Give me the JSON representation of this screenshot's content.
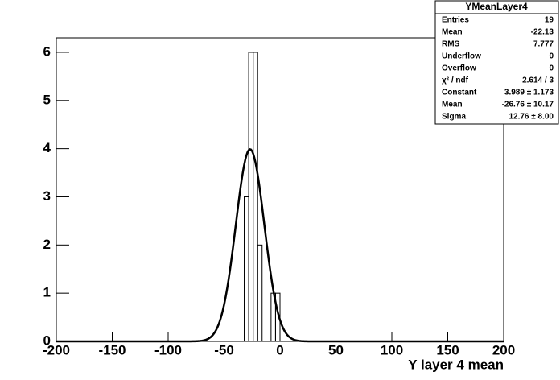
{
  "chart_data": {
    "type": "histogram",
    "xlabel": "Y layer 4 mean",
    "bins": [
      -32,
      -28,
      -24,
      -20,
      -16,
      -12,
      -8,
      -4,
      0
    ],
    "counts": [
      3,
      6,
      6,
      2,
      0,
      0,
      1,
      1
    ],
    "color": "#000000",
    "xlim": [
      -200,
      200
    ],
    "xticks": [
      -200,
      -150,
      -100,
      -50,
      0,
      50,
      100,
      150,
      200
    ],
    "ylim": [
      0,
      6.3
    ],
    "yticks": [
      0,
      1,
      2,
      3,
      4,
      5,
      6
    ],
    "fit": {
      "names": [
        "Constant",
        "Mean",
        "Sigma"
      ],
      "values": [
        3.989,
        -26.76,
        12.76
      ],
      "value_labels": [
        "3.989 ± 1.173",
        "-26.76 ± 10.17",
        "12.76 ± 8.00"
      ],
      "color": "#000000"
    },
    "stats": {
      "title": "YMeanLayer4",
      "rows": [
        {
          "label": "Entries",
          "value": 19
        },
        {
          "label": "Mean",
          "value": -22.13
        },
        {
          "label": "RMS",
          "value": 7.777
        },
        {
          "label": "Underflow",
          "value": 0
        },
        {
          "label": "Overflow",
          "value": 0
        },
        {
          "label": "χ² / ndf",
          "value": "2.614 / 3"
        }
      ]
    }
  }
}
